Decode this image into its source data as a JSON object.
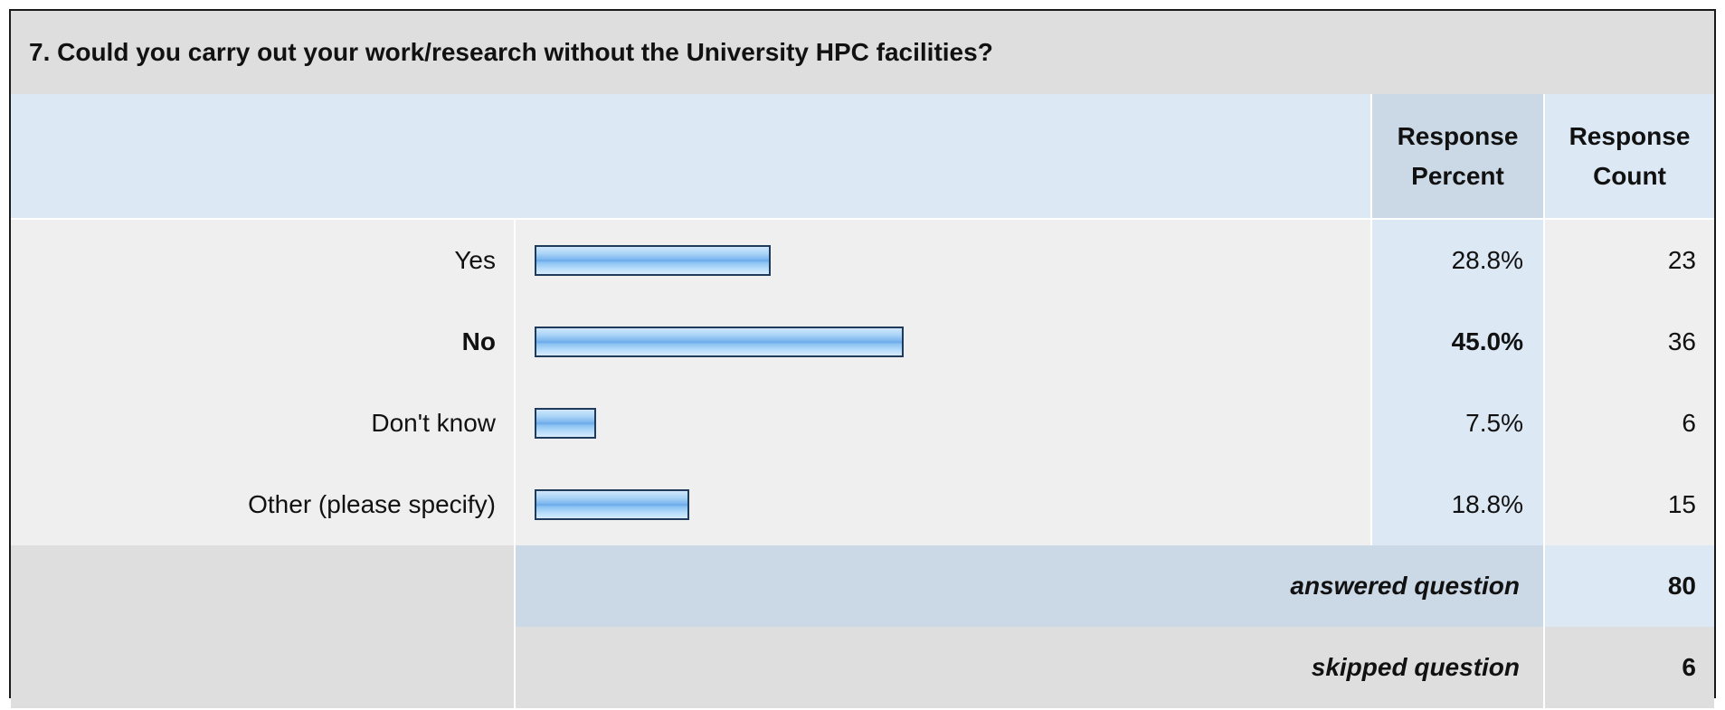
{
  "question": {
    "title": "7. Could you carry out your work/research without the University HPC facilities?"
  },
  "headers": {
    "percent": "Response Percent",
    "count": "Response Count"
  },
  "colors": {
    "bar_border": "#1f3a5a",
    "bar_fill": "#7fb8ee",
    "header_bg": "#dde8f5",
    "row_bg": "#efefef"
  },
  "chart_data": {
    "type": "bar",
    "orientation": "horizontal",
    "categories": [
      "Yes",
      "No",
      "Don't know",
      "Other (please specify)"
    ],
    "values": [
      28.8,
      45.0,
      7.5,
      18.8
    ],
    "percent_labels": [
      "28.8%",
      "45.0%",
      "7.5%",
      "18.8%"
    ],
    "counts": [
      "23",
      "36",
      "6",
      "15"
    ],
    "highlight_index": 1,
    "xlim": [
      0,
      100
    ],
    "grid": false
  },
  "summary": {
    "answered_label": "answered question",
    "answered_value": "80",
    "skipped_label": "skipped question",
    "skipped_value": "6"
  }
}
